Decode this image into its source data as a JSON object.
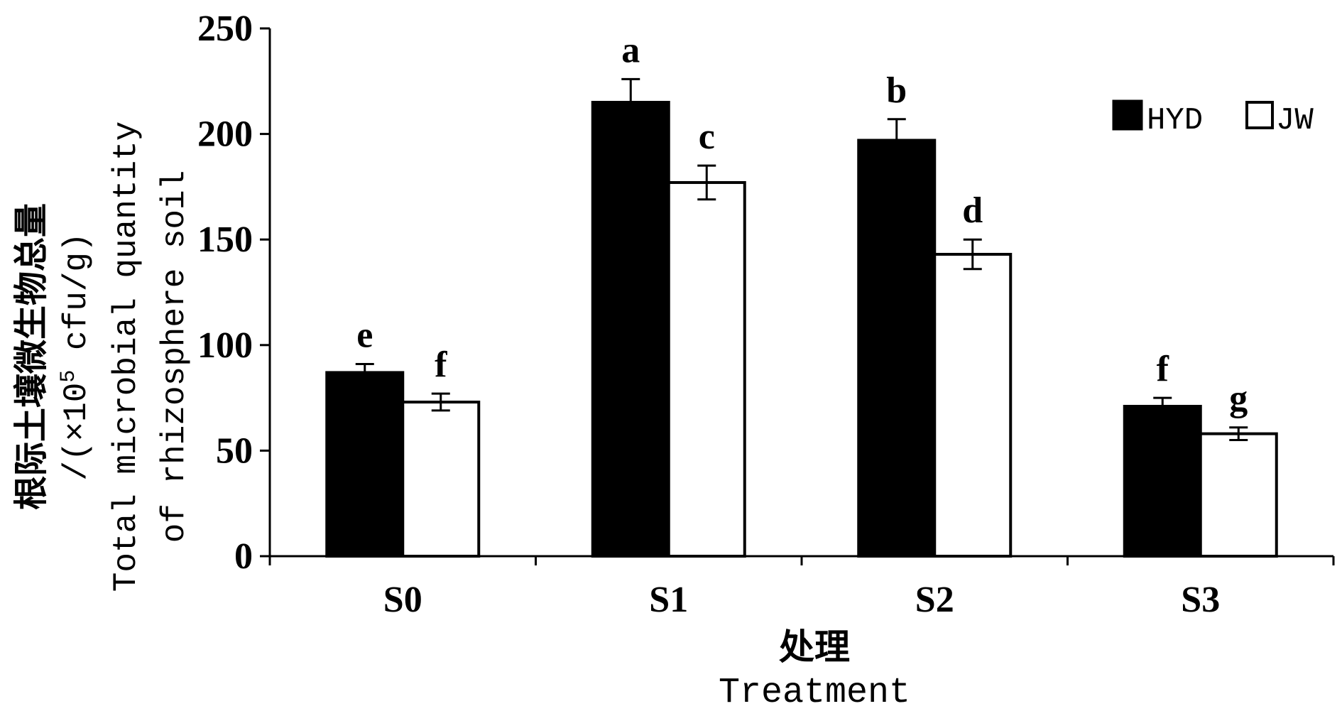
{
  "chart_data": {
    "type": "bar",
    "title": "",
    "xlabel_cn": "处理",
    "xlabel_en": "Treatment",
    "ylabel_cn_line1": "根际土壤微生物总量",
    "ylabel_cn_line2_prefix": "/(×10",
    "ylabel_cn_line2_exp": "5",
    "ylabel_cn_line2_suffix": " cfu/g)",
    "ylabel_en_line1": "Total microbial quantity",
    "ylabel_en_line2": "of rhizosphere soil",
    "categories": [
      "S0",
      "S1",
      "S2",
      "S3"
    ],
    "ylim": [
      0,
      250
    ],
    "yticks": [
      0,
      50,
      100,
      150,
      200,
      250
    ],
    "ytick_labels": [
      "0",
      "50",
      "100",
      "150",
      "200",
      "250"
    ],
    "legend_position": "top-right",
    "grid": false,
    "series": [
      {
        "name": "HYD",
        "color": "#000000",
        "values": [
          87,
          215,
          197,
          71
        ],
        "errors": [
          4,
          11,
          10,
          4
        ],
        "letters": [
          "e",
          "a",
          "b",
          "f"
        ]
      },
      {
        "name": "JW",
        "color": "#ffffff",
        "values": [
          73,
          177,
          143,
          58
        ],
        "errors": [
          4,
          8,
          7,
          3
        ],
        "letters": [
          "f",
          "c",
          "d",
          "g"
        ]
      }
    ]
  }
}
